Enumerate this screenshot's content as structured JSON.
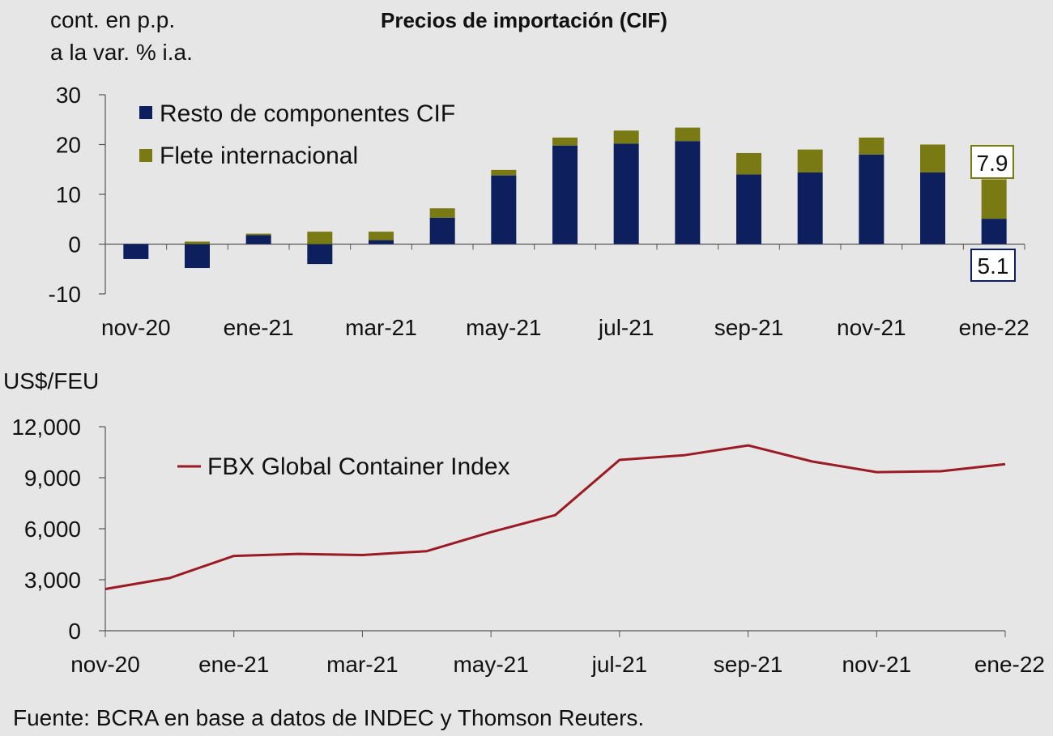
{
  "title": "Precios de importación (CIF)",
  "source": "Fuente: BCRA en base a datos de INDEC y Thomson Reuters.",
  "colors": {
    "resto": "#0d1f5c",
    "flete": "#7a7a14",
    "fbx": "#9b1b24",
    "background": "#e6e6e6"
  },
  "chart_data": [
    {
      "type": "bar",
      "stacked": true,
      "ylabel_lines": [
        "cont. en p.p.",
        "a la var. % i.a."
      ],
      "categories": [
        "nov-20",
        "dic-20",
        "ene-21",
        "feb-21",
        "mar-21",
        "abr-21",
        "may-21",
        "jun-21",
        "jul-21",
        "ago-21",
        "sep-21",
        "oct-21",
        "nov-21",
        "dic-21",
        "ene-22"
      ],
      "x_tick_labels": [
        "nov-20",
        "ene-21",
        "mar-21",
        "may-21",
        "jul-21",
        "sep-21",
        "nov-21",
        "ene-22"
      ],
      "ylim": [
        -10,
        30
      ],
      "y_ticks": [
        -10,
        0,
        10,
        20,
        30
      ],
      "y_tick_labels": [
        "-10",
        "0",
        "10",
        "20",
        "30"
      ],
      "legend_position": "top-left",
      "series": [
        {
          "name": "Resto de componentes CIF",
          "values": [
            -3,
            -4.8,
            1.8,
            -4,
            0.8,
            5.3,
            13.8,
            19.8,
            20.2,
            20.7,
            14,
            14.4,
            18,
            14.4,
            5.1
          ]
        },
        {
          "name": "Flete internacional",
          "values": [
            0,
            0.5,
            0.3,
            2.5,
            1.7,
            1.9,
            1.1,
            1.6,
            2.6,
            2.7,
            4.3,
            4.6,
            3.4,
            5.6,
            7.9
          ]
        }
      ],
      "annotations": [
        {
          "category": "ene-22",
          "series": "Flete internacional",
          "label": "7.9"
        },
        {
          "category": "ene-22",
          "series": "Resto de componentes CIF",
          "label": "5.1"
        }
      ]
    },
    {
      "type": "line",
      "ylabel": "US$/FEU",
      "categories": [
        "nov-20",
        "dic-20",
        "ene-21",
        "feb-21",
        "mar-21",
        "abr-21",
        "may-21",
        "jun-21",
        "jul-21",
        "ago-21",
        "sep-21",
        "oct-21",
        "nov-21",
        "dic-21",
        "ene-22"
      ],
      "x_tick_labels": [
        "nov-20",
        "ene-21",
        "mar-21",
        "may-21",
        "jul-21",
        "sep-21",
        "nov-21",
        "ene-22"
      ],
      "ylim": [
        0,
        12000
      ],
      "y_ticks": [
        0,
        3000,
        6000,
        9000,
        12000
      ],
      "y_tick_labels": [
        "0",
        "3,000",
        "6,000",
        "9,000",
        "12,000"
      ],
      "legend_position": "top-left",
      "series": [
        {
          "name": "FBX Global Container Index",
          "values": [
            2450,
            3100,
            4400,
            4520,
            4450,
            4680,
            5800,
            6800,
            10050,
            10320,
            10900,
            9950,
            9330,
            9380,
            9800
          ]
        }
      ]
    }
  ]
}
